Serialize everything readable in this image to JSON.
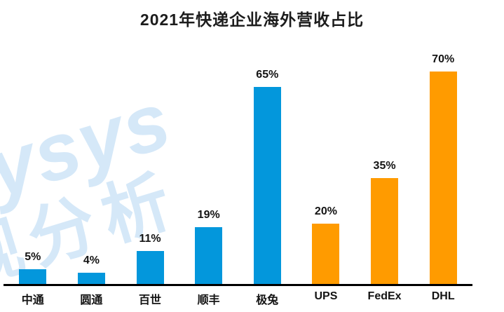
{
  "title": "2021年快递企业海外营收占比",
  "watermark": {
    "line1": "lysys",
    "line2": "观分析",
    "color": "#d5e8f8"
  },
  "colors": {
    "blue_bar": "#0397dc",
    "orange_bar": "#ff9b00",
    "axis": "#000000",
    "text": "#141414"
  },
  "chart_data": {
    "type": "bar",
    "title": "2021年快递企业海外营收占比",
    "categories": [
      "中通",
      "圆通",
      "百世",
      "顺丰",
      "极兔",
      "UPS",
      "FedEx",
      "DHL"
    ],
    "values": [
      5,
      4,
      11,
      19,
      65,
      20,
      35,
      70
    ],
    "value_labels": [
      "5%",
      "4%",
      "11%",
      "19%",
      "65%",
      "20%",
      "35%",
      "70%"
    ],
    "bar_colors": [
      "#0397dc",
      "#0397dc",
      "#0397dc",
      "#0397dc",
      "#0397dc",
      "#ff9b00",
      "#ff9b00",
      "#ff9b00"
    ],
    "xlabel": "",
    "ylabel": "",
    "ylim": [
      0,
      75
    ],
    "grid": false,
    "legend": false,
    "data_labels_position": "above-bars"
  }
}
